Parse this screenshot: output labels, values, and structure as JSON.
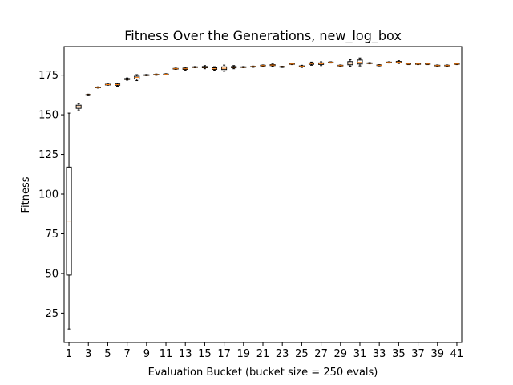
{
  "chart_data": {
    "type": "box",
    "title": "Fitness Over the Generations, new_log_box",
    "xlabel": "Evaluation Bucket (bucket size = 250 evals)",
    "ylabel": "Fitness",
    "xlim": [
      0.5,
      41.5
    ],
    "ylim": [
      6.5,
      193
    ],
    "yticks": [
      25,
      50,
      75,
      100,
      125,
      150,
      175
    ],
    "xticks": [
      1,
      3,
      5,
      7,
      9,
      11,
      13,
      15,
      17,
      19,
      21,
      23,
      25,
      27,
      29,
      31,
      33,
      35,
      37,
      39,
      41
    ],
    "grid": false,
    "box_color": "#000000",
    "median_color": "#ff7f0e",
    "boxes": [
      {
        "x": 1,
        "whislo": 15,
        "q1": 49,
        "med": 83,
        "q3": 117,
        "whishi": 151
      },
      {
        "x": 2,
        "whislo": 153,
        "q1": 154,
        "med": 155,
        "q3": 156,
        "whishi": 157
      },
      {
        "x": 3,
        "whislo": 162,
        "q1": 162.3,
        "med": 162.5,
        "q3": 162.7,
        "whishi": 163
      },
      {
        "x": 4,
        "whislo": 166.8,
        "q1": 167,
        "med": 167.2,
        "q3": 167.4,
        "whishi": 167.6
      },
      {
        "x": 5,
        "whislo": 168.6,
        "q1": 168.8,
        "med": 169,
        "q3": 169.2,
        "whishi": 169.4
      },
      {
        "x": 6,
        "whislo": 168,
        "q1": 168.6,
        "med": 169,
        "q3": 169.4,
        "whishi": 170
      },
      {
        "x": 7,
        "whislo": 171.8,
        "q1": 172.2,
        "med": 172.5,
        "q3": 172.8,
        "whishi": 173.2
      },
      {
        "x": 8,
        "whislo": 171.5,
        "q1": 172.5,
        "med": 173.5,
        "q3": 174.3,
        "whishi": 175.3
      },
      {
        "x": 9,
        "whislo": 174.6,
        "q1": 174.8,
        "med": 175,
        "q3": 175.2,
        "whishi": 175.4
      },
      {
        "x": 10,
        "whislo": 174.9,
        "q1": 175.1,
        "med": 175.3,
        "q3": 175.5,
        "whishi": 175.7
      },
      {
        "x": 11,
        "whislo": 175.1,
        "q1": 175.3,
        "med": 175.5,
        "q3": 175.7,
        "whishi": 175.9
      },
      {
        "x": 12,
        "whislo": 178.6,
        "q1": 178.8,
        "med": 179,
        "q3": 179.2,
        "whishi": 179.4
      },
      {
        "x": 13,
        "whislo": 178,
        "q1": 178.6,
        "med": 179,
        "q3": 179.4,
        "whishi": 180
      },
      {
        "x": 14,
        "whislo": 179.6,
        "q1": 179.8,
        "med": 180,
        "q3": 180.2,
        "whishi": 180.4
      },
      {
        "x": 15,
        "whislo": 179,
        "q1": 179.6,
        "med": 180,
        "q3": 180.4,
        "whishi": 181
      },
      {
        "x": 16,
        "whislo": 178,
        "q1": 178.6,
        "med": 179,
        "q3": 179.6,
        "whishi": 180.3
      },
      {
        "x": 17,
        "whislo": 177.4,
        "q1": 178.5,
        "med": 179.3,
        "q3": 180.2,
        "whishi": 181.3
      },
      {
        "x": 18,
        "whislo": 179,
        "q1": 179.6,
        "med": 180,
        "q3": 180.4,
        "whishi": 181
      },
      {
        "x": 19,
        "whislo": 179.6,
        "q1": 179.8,
        "med": 180,
        "q3": 180.2,
        "whishi": 180.4
      },
      {
        "x": 20,
        "whislo": 179.9,
        "q1": 180.1,
        "med": 180.3,
        "q3": 180.5,
        "whishi": 180.7
      },
      {
        "x": 21,
        "whislo": 180.6,
        "q1": 180.8,
        "med": 181,
        "q3": 181.2,
        "whishi": 181.4
      },
      {
        "x": 22,
        "whislo": 180.6,
        "q1": 181,
        "med": 181.3,
        "q3": 181.6,
        "whishi": 182
      },
      {
        "x": 23,
        "whislo": 179.8,
        "q1": 180,
        "med": 180.2,
        "q3": 180.4,
        "whishi": 180.6
      },
      {
        "x": 24,
        "whislo": 181.6,
        "q1": 181.8,
        "med": 182,
        "q3": 182.2,
        "whishi": 182.4
      },
      {
        "x": 25,
        "whislo": 179.8,
        "q1": 180.2,
        "med": 180.5,
        "q3": 180.8,
        "whishi": 181.2
      },
      {
        "x": 26,
        "whislo": 181.2,
        "q1": 181.8,
        "med": 182.3,
        "q3": 182.7,
        "whishi": 183.2
      },
      {
        "x": 27,
        "whislo": 181,
        "q1": 181.7,
        "med": 182.2,
        "q3": 182.7,
        "whishi": 183.4
      },
      {
        "x": 28,
        "whislo": 182.6,
        "q1": 182.8,
        "med": 183,
        "q3": 183.2,
        "whishi": 183.4
      },
      {
        "x": 29,
        "whislo": 180.6,
        "q1": 180.8,
        "med": 181,
        "q3": 181.2,
        "whishi": 181.4
      },
      {
        "x": 30,
        "whislo": 180.5,
        "q1": 181.5,
        "med": 182.5,
        "q3": 183.5,
        "whishi": 184.7
      },
      {
        "x": 31,
        "whislo": 180.8,
        "q1": 182,
        "med": 183,
        "q3": 184.5,
        "whishi": 185.8
      },
      {
        "x": 32,
        "whislo": 182.1,
        "q1": 182.3,
        "med": 182.5,
        "q3": 182.7,
        "whishi": 182.9
      },
      {
        "x": 33,
        "whislo": 180.8,
        "q1": 181,
        "med": 181.2,
        "q3": 181.4,
        "whishi": 181.6
      },
      {
        "x": 34,
        "whislo": 182.6,
        "q1": 182.8,
        "med": 183,
        "q3": 183.2,
        "whishi": 183.4
      },
      {
        "x": 35,
        "whislo": 182.3,
        "q1": 182.8,
        "med": 183.2,
        "q3": 183.6,
        "whishi": 184.1
      },
      {
        "x": 36,
        "whislo": 181.6,
        "q1": 181.8,
        "med": 182,
        "q3": 182.2,
        "whishi": 182.4
      },
      {
        "x": 37,
        "whislo": 181.6,
        "q1": 181.8,
        "med": 182,
        "q3": 182.2,
        "whishi": 182.4
      },
      {
        "x": 38,
        "whislo": 181.6,
        "q1": 181.8,
        "med": 182,
        "q3": 182.2,
        "whishi": 182.4
      },
      {
        "x": 39,
        "whislo": 180.6,
        "q1": 180.8,
        "med": 181,
        "q3": 181.2,
        "whishi": 181.4
      },
      {
        "x": 40,
        "whislo": 180.6,
        "q1": 180.8,
        "med": 181,
        "q3": 181.2,
        "whishi": 181.4
      },
      {
        "x": 41,
        "whislo": 181.6,
        "q1": 181.8,
        "med": 182,
        "q3": 182.2,
        "whishi": 182.4
      }
    ]
  }
}
